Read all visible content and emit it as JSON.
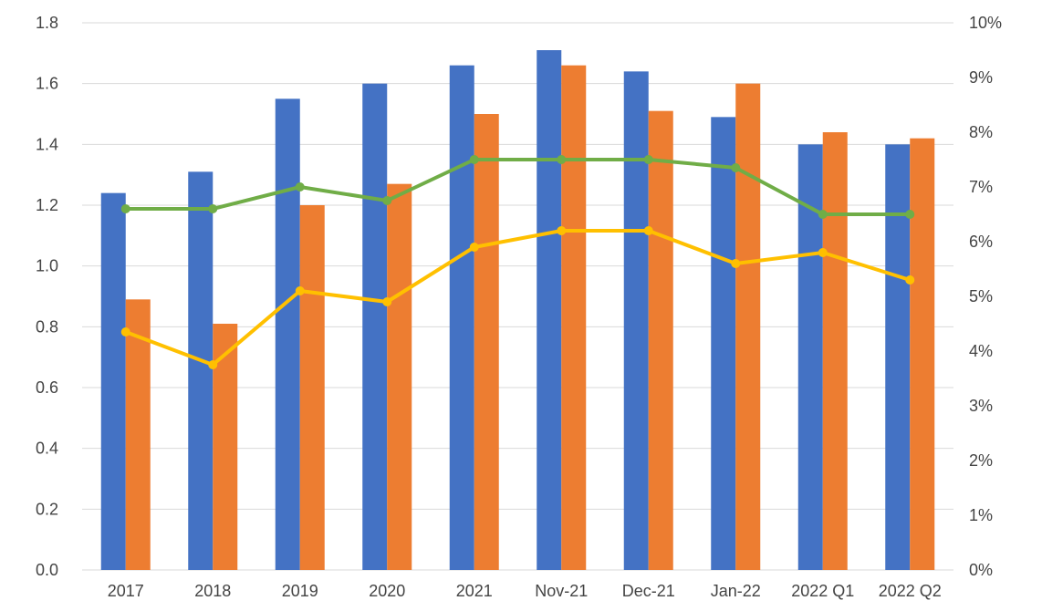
{
  "chart_data": {
    "type": "bar",
    "categories": [
      "2017",
      "2018",
      "2019",
      "2020",
      "2021",
      "Nov-21",
      "Dec-21",
      "Jan-22",
      "2022 Q1",
      "2022 Q2"
    ],
    "bar_series": [
      {
        "color": "#4472c4",
        "values": [
          1.24,
          1.31,
          1.55,
          1.6,
          1.66,
          1.71,
          1.64,
          1.49,
          1.4,
          1.4
        ]
      },
      {
        "color": "#ed7d31",
        "values": [
          0.89,
          0.81,
          1.2,
          1.27,
          1.5,
          1.66,
          1.51,
          1.6,
          1.44,
          1.42
        ]
      }
    ],
    "line_series": [
      {
        "color": "#70ad47",
        "axis": "right",
        "values": [
          6.6,
          6.6,
          7.0,
          6.75,
          7.5,
          7.5,
          7.5,
          7.35,
          6.5,
          6.5
        ]
      },
      {
        "color": "#ffc000",
        "axis": "right",
        "values": [
          4.35,
          3.75,
          5.1,
          4.9,
          5.9,
          6.2,
          6.2,
          5.6,
          5.8,
          5.3
        ]
      }
    ],
    "left_axis": {
      "min": 0,
      "max": 1.8,
      "ticks": [
        "0.0",
        "0.2",
        "0.4",
        "0.6",
        "0.8",
        "1.0",
        "1.2",
        "1.4",
        "1.6",
        "1.8"
      ]
    },
    "right_axis": {
      "min": 0,
      "max": 10,
      "ticks": [
        "0%",
        "1%",
        "2%",
        "3%",
        "4%",
        "5%",
        "6%",
        "7%",
        "8%",
        "9%",
        "10%"
      ]
    },
    "title": "",
    "xlabel": "",
    "ylabel": "",
    "grid": true,
    "legend": "none"
  }
}
